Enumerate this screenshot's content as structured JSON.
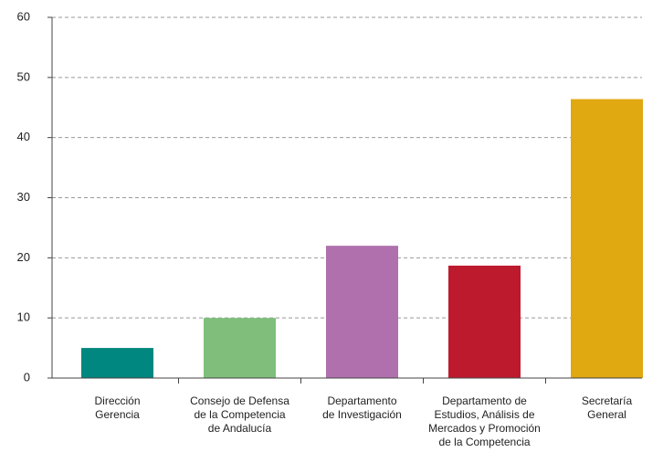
{
  "chart_data": {
    "type": "bar",
    "categories": [
      [
        "Dirección",
        "Gerencia"
      ],
      [
        "Consejo de Defensa",
        "de la Competencia",
        "de Andalucía"
      ],
      [
        "Departamento",
        "de Investigación"
      ],
      [
        "Departamento de",
        "Estudios, Análisis de",
        "Mercados y Promoción",
        "de la Competencia"
      ],
      [
        "Secretaría",
        "General"
      ]
    ],
    "values": [
      5,
      10,
      22,
      18.7,
      46.4
    ],
    "colors": [
      "#00877f",
      "#7fbf7b",
      "#b070ad",
      "#be1a2e",
      "#e0a811"
    ],
    "ylim": [
      0,
      60
    ],
    "yticks": [
      0,
      10,
      20,
      30,
      40,
      50,
      60
    ],
    "grid": true
  }
}
